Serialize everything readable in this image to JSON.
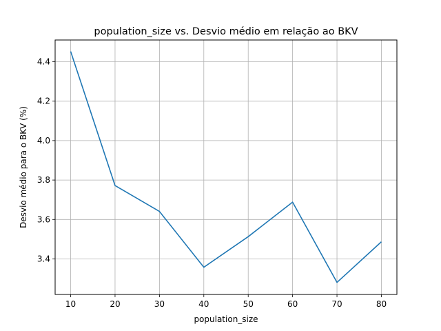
{
  "chart_data": {
    "type": "line",
    "title": "population_size vs. Desvio médio em relação ao BKV",
    "xlabel": "population_size",
    "ylabel": "Desvio médio para o BKV (%)",
    "xlim": [
      6.5,
      83.5
    ],
    "ylim": [
      3.22,
      4.51
    ],
    "grid": true,
    "x_ticks": [
      10,
      20,
      30,
      40,
      50,
      60,
      70,
      80
    ],
    "y_ticks": [
      3.4,
      3.6,
      3.8,
      4.0,
      4.2,
      4.4
    ],
    "x_tick_labels": [
      "10",
      "20",
      "30",
      "40",
      "50",
      "60",
      "70",
      "80"
    ],
    "y_tick_labels": [
      "3.4",
      "3.6",
      "3.8",
      "4.0",
      "4.2",
      "4.4"
    ],
    "series": [
      {
        "color": "#1f77b4",
        "x": [
          10,
          20,
          30,
          40,
          50,
          60,
          70,
          80
        ],
        "values": [
          4.452,
          3.772,
          3.641,
          3.358,
          3.513,
          3.688,
          3.281,
          3.487
        ]
      }
    ]
  }
}
